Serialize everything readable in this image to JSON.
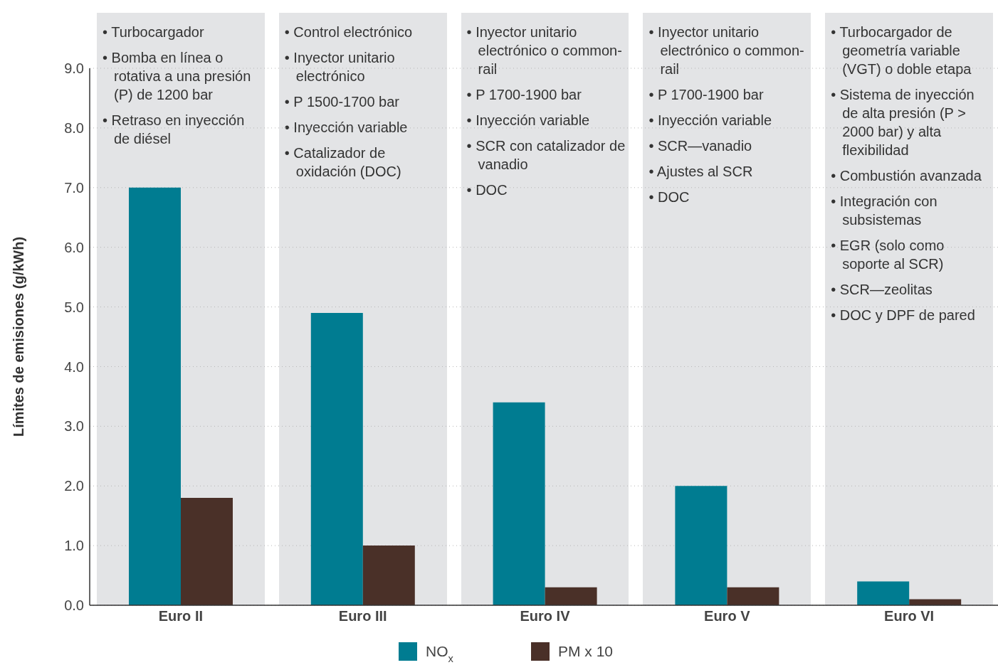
{
  "chart_data": {
    "type": "bar",
    "ylabel": "Límites de emisiones (g/kWh)",
    "categories": [
      "Euro II",
      "Euro III",
      "Euro IV",
      "Euro V",
      "Euro VI"
    ],
    "series": [
      {
        "name": "NO$_{x}$",
        "color": "#007c91",
        "values": [
          7.0,
          4.9,
          3.4,
          2.0,
          0.4
        ]
      },
      {
        "name": "PM x 10",
        "color": "#4a3028",
        "values": [
          1.8,
          1.0,
          0.3,
          0.3,
          0.1
        ]
      }
    ],
    "ylim": [
      0,
      9
    ],
    "yticks": [
      {
        "value": 0,
        "label": "0.0"
      },
      {
        "value": 1,
        "label": "1.0"
      },
      {
        "value": 2,
        "label": "2.0"
      },
      {
        "value": 3,
        "label": "3.0"
      },
      {
        "value": 4,
        "label": "4.0"
      },
      {
        "value": 5,
        "label": "5.0"
      },
      {
        "value": 6,
        "label": "6.0"
      },
      {
        "value": 7,
        "label": "7.0"
      },
      {
        "value": 8,
        "label": "8.0"
      },
      {
        "value": 9,
        "label": "9.0"
      }
    ],
    "grid": "y",
    "legend": "bottom",
    "bands": [
      {
        "axis": "x",
        "from": "Euro II",
        "to": "Euro II",
        "color": "#e3e4e6"
      },
      {
        "axis": "x",
        "from": "Euro III",
        "to": "Euro III",
        "color": "#e3e4e6"
      },
      {
        "axis": "x",
        "from": "Euro IV",
        "to": "Euro IV",
        "color": "#e3e4e6"
      },
      {
        "axis": "x",
        "from": "Euro V",
        "to": "Euro V",
        "color": "#e3e4e6"
      },
      {
        "axis": "x",
        "from": "Euro VI",
        "to": "Euro VI",
        "color": "#e3e4e6"
      }
    ],
    "annotations": [
      "• Turbocargador\n• Bomba en línea o rotativa a una presión (P) de 1200 bar\n• Retraso en inyección de diésel",
      "• Control electrónico\n• Inyector unitario electrónico\n• P 1500-1700 bar\n• Inyección variable\n• Catalizador de oxidación (DOC)",
      "• Inyector unitario electrónico o common-rail\n• P 1700-1900 bar\n• Inyección variable\n• SCR con catalizador de vanadio\n• DOC",
      "• Inyector unitario electrónico o common-rail\n• P 1700-1900 bar\n• Inyección variable\n• SCR—vanadio\n• Ajustes al SCR\n• DOC",
      "• Turbocargador de geometría variable (VGT) o doble etapa\n• Sistema de inyección de alta presión (P > 2000 bar) y alta flexibilidad\n• Combustión avanzada\n• Integración con subsistemas\n• EGR (solo como soporte al SCR)\n• SCR—zeolitas\n• DOC y DPF de pared"
    ]
  }
}
